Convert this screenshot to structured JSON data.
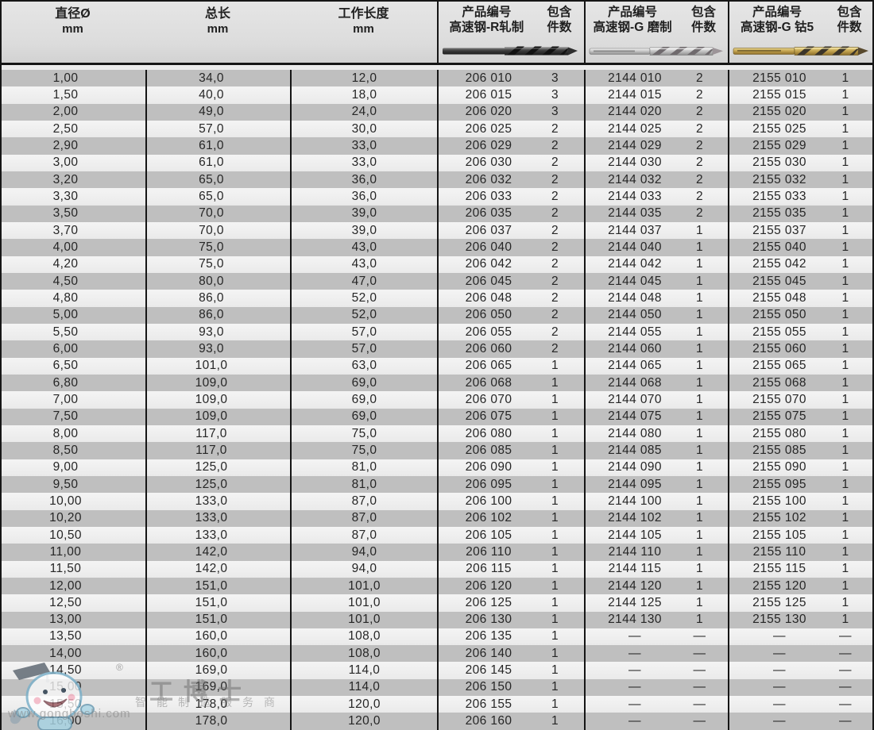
{
  "table": {
    "measure_columns": [
      {
        "line1": "直径Ø",
        "line2": "mm"
      },
      {
        "line1": "总长",
        "line2": "mm"
      },
      {
        "line1": "工作长度",
        "line2": "mm"
      }
    ],
    "product_groups": [
      {
        "title": "产品编号",
        "subtitle": "高速钢-R轧制",
        "qty_line1": "包含",
        "qty_line2": "件数",
        "drill_icon": "hss-r-rolled-black-drill"
      },
      {
        "title": "产品编号",
        "subtitle": "高速钢-G 磨制",
        "qty_line1": "包含",
        "qty_line2": "件数",
        "drill_icon": "hss-g-ground-silver-drill"
      },
      {
        "title": "产品编号",
        "subtitle": "高速钢-G 钴5",
        "qty_line1": "包含",
        "qty_line2": "件数",
        "drill_icon": "hss-g-cobalt5-gold-drill"
      }
    ],
    "empty_marker": "—",
    "rows": [
      [
        "1,00",
        "34,0",
        "12,0",
        "206 010",
        "3",
        "2144 010",
        "2",
        "2155 010",
        "1"
      ],
      [
        "1,50",
        "40,0",
        "18,0",
        "206 015",
        "3",
        "2144 015",
        "2",
        "2155 015",
        "1"
      ],
      [
        "2,00",
        "49,0",
        "24,0",
        "206 020",
        "3",
        "2144 020",
        "2",
        "2155 020",
        "1"
      ],
      [
        "2,50",
        "57,0",
        "30,0",
        "206 025",
        "2",
        "2144 025",
        "2",
        "2155 025",
        "1"
      ],
      [
        "2,90",
        "61,0",
        "33,0",
        "206 029",
        "2",
        "2144 029",
        "2",
        "2155 029",
        "1"
      ],
      [
        "3,00",
        "61,0",
        "33,0",
        "206 030",
        "2",
        "2144 030",
        "2",
        "2155 030",
        "1"
      ],
      [
        "3,20",
        "65,0",
        "36,0",
        "206 032",
        "2",
        "2144 032",
        "2",
        "2155 032",
        "1"
      ],
      [
        "3,30",
        "65,0",
        "36,0",
        "206 033",
        "2",
        "2144 033",
        "2",
        "2155 033",
        "1"
      ],
      [
        "3,50",
        "70,0",
        "39,0",
        "206 035",
        "2",
        "2144 035",
        "2",
        "2155 035",
        "1"
      ],
      [
        "3,70",
        "70,0",
        "39,0",
        "206 037",
        "2",
        "2144 037",
        "1",
        "2155 037",
        "1"
      ],
      [
        "4,00",
        "75,0",
        "43,0",
        "206 040",
        "2",
        "2144 040",
        "1",
        "2155 040",
        "1"
      ],
      [
        "4,20",
        "75,0",
        "43,0",
        "206 042",
        "2",
        "2144 042",
        "1",
        "2155 042",
        "1"
      ],
      [
        "4,50",
        "80,0",
        "47,0",
        "206 045",
        "2",
        "2144 045",
        "1",
        "2155 045",
        "1"
      ],
      [
        "4,80",
        "86,0",
        "52,0",
        "206 048",
        "2",
        "2144 048",
        "1",
        "2155 048",
        "1"
      ],
      [
        "5,00",
        "86,0",
        "52,0",
        "206 050",
        "2",
        "2144 050",
        "1",
        "2155 050",
        "1"
      ],
      [
        "5,50",
        "93,0",
        "57,0",
        "206 055",
        "2",
        "2144 055",
        "1",
        "2155 055",
        "1"
      ],
      [
        "6,00",
        "93,0",
        "57,0",
        "206 060",
        "2",
        "2144 060",
        "1",
        "2155 060",
        "1"
      ],
      [
        "6,50",
        "101,0",
        "63,0",
        "206 065",
        "1",
        "2144 065",
        "1",
        "2155 065",
        "1"
      ],
      [
        "6,80",
        "109,0",
        "69,0",
        "206 068",
        "1",
        "2144 068",
        "1",
        "2155 068",
        "1"
      ],
      [
        "7,00",
        "109,0",
        "69,0",
        "206 070",
        "1",
        "2144 070",
        "1",
        "2155 070",
        "1"
      ],
      [
        "7,50",
        "109,0",
        "69,0",
        "206 075",
        "1",
        "2144 075",
        "1",
        "2155 075",
        "1"
      ],
      [
        "8,00",
        "117,0",
        "75,0",
        "206 080",
        "1",
        "2144 080",
        "1",
        "2155 080",
        "1"
      ],
      [
        "8,50",
        "117,0",
        "75,0",
        "206 085",
        "1",
        "2144 085",
        "1",
        "2155 085",
        "1"
      ],
      [
        "9,00",
        "125,0",
        "81,0",
        "206 090",
        "1",
        "2144 090",
        "1",
        "2155 090",
        "1"
      ],
      [
        "9,50",
        "125,0",
        "81,0",
        "206 095",
        "1",
        "2144 095",
        "1",
        "2155 095",
        "1"
      ],
      [
        "10,00",
        "133,0",
        "87,0",
        "206 100",
        "1",
        "2144 100",
        "1",
        "2155 100",
        "1"
      ],
      [
        "10,20",
        "133,0",
        "87,0",
        "206 102",
        "1",
        "2144 102",
        "1",
        "2155 102",
        "1"
      ],
      [
        "10,50",
        "133,0",
        "87,0",
        "206 105",
        "1",
        "2144 105",
        "1",
        "2155 105",
        "1"
      ],
      [
        "11,00",
        "142,0",
        "94,0",
        "206 110",
        "1",
        "2144 110",
        "1",
        "2155 110",
        "1"
      ],
      [
        "11,50",
        "142,0",
        "94,0",
        "206 115",
        "1",
        "2144 115",
        "1",
        "2155 115",
        "1"
      ],
      [
        "12,00",
        "151,0",
        "101,0",
        "206 120",
        "1",
        "2144 120",
        "1",
        "2155 120",
        "1"
      ],
      [
        "12,50",
        "151,0",
        "101,0",
        "206 125",
        "1",
        "2144 125",
        "1",
        "2155 125",
        "1"
      ],
      [
        "13,00",
        "151,0",
        "101,0",
        "206 130",
        "1",
        "2144 130",
        "1",
        "2155 130",
        "1"
      ],
      [
        "13,50",
        "160,0",
        "108,0",
        "206 135",
        "1",
        "—",
        "—",
        "—",
        "—"
      ],
      [
        "14,00",
        "160,0",
        "108,0",
        "206 140",
        "1",
        "—",
        "—",
        "—",
        "—"
      ],
      [
        "14,50",
        "169,0",
        "114,0",
        "206 145",
        "1",
        "—",
        "—",
        "—",
        "—"
      ],
      [
        "15,00",
        "169,0",
        "114,0",
        "206 150",
        "1",
        "—",
        "—",
        "—",
        "—"
      ],
      [
        "15,50",
        "178,0",
        "120,0",
        "206 155",
        "1",
        "—",
        "—",
        "—",
        "—"
      ],
      [
        "16,00",
        "178,0",
        "120,0",
        "206 160",
        "1",
        "—",
        "—",
        "—",
        "—"
      ]
    ]
  },
  "watermark": {
    "registered_mark": "®",
    "brand": "工博士",
    "slogan": "智能制造服务商",
    "url": "www.gongboshi.com",
    "mascot_icon": "gongboshi-mascot"
  },
  "colors": {
    "row_dark": "#bfbfbf",
    "row_light": "#eeeeee",
    "header_bg": "#dedede",
    "grid_border": "#161616",
    "text": "#262626",
    "drill_black": "#3a3a3a",
    "drill_silver": "#c0c0c0",
    "drill_gold": "#c2a24e",
    "watermark_blue": "#a9d5e5",
    "watermark_gray": "#8f8f8f"
  }
}
